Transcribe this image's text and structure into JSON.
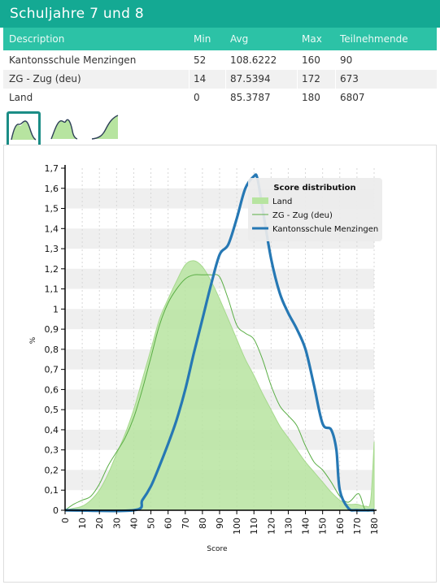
{
  "header": {
    "title": "Schuljahre 7 und 8"
  },
  "table": {
    "columns": [
      "Description",
      "Min",
      "Avg",
      "Max",
      "Teilnehmende"
    ],
    "rows": [
      {
        "description": "Kantonsschule Menzingen",
        "min": "52",
        "avg": "108.6222",
        "max": "160",
        "participants": "90"
      },
      {
        "description": "ZG - Zug (deu)",
        "min": "14",
        "avg": "87.5394",
        "max": "172",
        "participants": "673"
      },
      {
        "description": "Land",
        "min": "0",
        "avg": "85.3787",
        "max": "180",
        "participants": "6807"
      }
    ]
  },
  "view_toggles": [
    {
      "icon": "distribution-chart-icon",
      "active": true
    },
    {
      "icon": "distribution-outline-chart-icon",
      "active": false
    },
    {
      "icon": "cumulative-curve-icon",
      "active": false
    }
  ],
  "chart_data": {
    "type": "area",
    "xlabel": "Score",
    "ylabel": "%",
    "xlim": [
      0,
      180
    ],
    "ylim": [
      0,
      1.7
    ],
    "x_ticks": [
      0,
      10,
      20,
      30,
      40,
      50,
      60,
      70,
      80,
      90,
      100,
      110,
      120,
      130,
      140,
      150,
      160,
      170,
      180
    ],
    "y_ticks": [
      0,
      0.1,
      0.2,
      0.3,
      0.4,
      0.5,
      0.6,
      0.7,
      0.8,
      0.9,
      1,
      1.1,
      1.2,
      1.3,
      1.4,
      1.5,
      1.6,
      1.7
    ],
    "y_tick_labels": [
      "0",
      "0,1",
      "0,2",
      "0,3",
      "0,4",
      "0,5",
      "0,6",
      "0,7",
      "0,8",
      "0,9",
      "1",
      "1,1",
      "1,2",
      "1,3",
      "1,4",
      "1,5",
      "1,6",
      "1,7"
    ],
    "legend": {
      "title": "Score distribution",
      "position": "top-right"
    },
    "series": [
      {
        "name": "Land",
        "style": "filled-area",
        "color": "#b7e4a0",
        "x": [
          0,
          5,
          10,
          15,
          20,
          25,
          30,
          35,
          40,
          45,
          50,
          55,
          60,
          65,
          70,
          75,
          80,
          85,
          90,
          95,
          100,
          105,
          110,
          115,
          120,
          125,
          130,
          135,
          140,
          145,
          150,
          155,
          160,
          165,
          170,
          175,
          178,
          180
        ],
        "y": [
          0,
          0.01,
          0.02,
          0.05,
          0.1,
          0.18,
          0.28,
          0.38,
          0.5,
          0.65,
          0.8,
          0.95,
          1.05,
          1.14,
          1.22,
          1.24,
          1.21,
          1.14,
          1.05,
          0.95,
          0.85,
          0.75,
          0.67,
          0.58,
          0.5,
          0.42,
          0.36,
          0.3,
          0.24,
          0.19,
          0.14,
          0.09,
          0.05,
          0.03,
          0.03,
          0.02,
          0.05,
          0.34
        ]
      },
      {
        "name": "ZG - Zug (deu)",
        "style": "thin-line",
        "color": "#5aae45",
        "x": [
          0,
          5,
          10,
          15,
          20,
          25,
          30,
          35,
          40,
          45,
          50,
          55,
          60,
          65,
          70,
          75,
          80,
          85,
          90,
          95,
          100,
          105,
          110,
          115,
          120,
          125,
          130,
          135,
          140,
          145,
          150,
          155,
          160,
          165,
          170,
          172,
          175,
          180
        ],
        "y": [
          0,
          0.03,
          0.05,
          0.07,
          0.13,
          0.22,
          0.29,
          0.36,
          0.46,
          0.6,
          0.76,
          0.92,
          1.03,
          1.1,
          1.15,
          1.17,
          1.17,
          1.17,
          1.16,
          1.05,
          0.92,
          0.88,
          0.85,
          0.75,
          0.62,
          0.52,
          0.47,
          0.42,
          0.32,
          0.24,
          0.2,
          0.14,
          0.07,
          0.04,
          0.08,
          0.07,
          0,
          0
        ]
      },
      {
        "name": "Kantonsschule Menzingen",
        "style": "thick-line",
        "color": "#2678b4",
        "x": [
          0,
          40,
          45,
          50,
          55,
          60,
          65,
          70,
          75,
          80,
          85,
          90,
          95,
          100,
          105,
          110,
          112,
          115,
          120,
          125,
          130,
          135,
          140,
          145,
          150,
          155,
          158,
          160,
          165,
          170,
          180
        ],
        "y": [
          0,
          0,
          0.05,
          0.12,
          0.22,
          0.33,
          0.45,
          0.6,
          0.78,
          0.95,
          1.12,
          1.27,
          1.32,
          1.45,
          1.6,
          1.66,
          1.65,
          1.5,
          1.25,
          1.08,
          0.98,
          0.9,
          0.8,
          0.62,
          0.43,
          0.4,
          0.3,
          0.1,
          0.01,
          0,
          0
        ]
      }
    ]
  }
}
